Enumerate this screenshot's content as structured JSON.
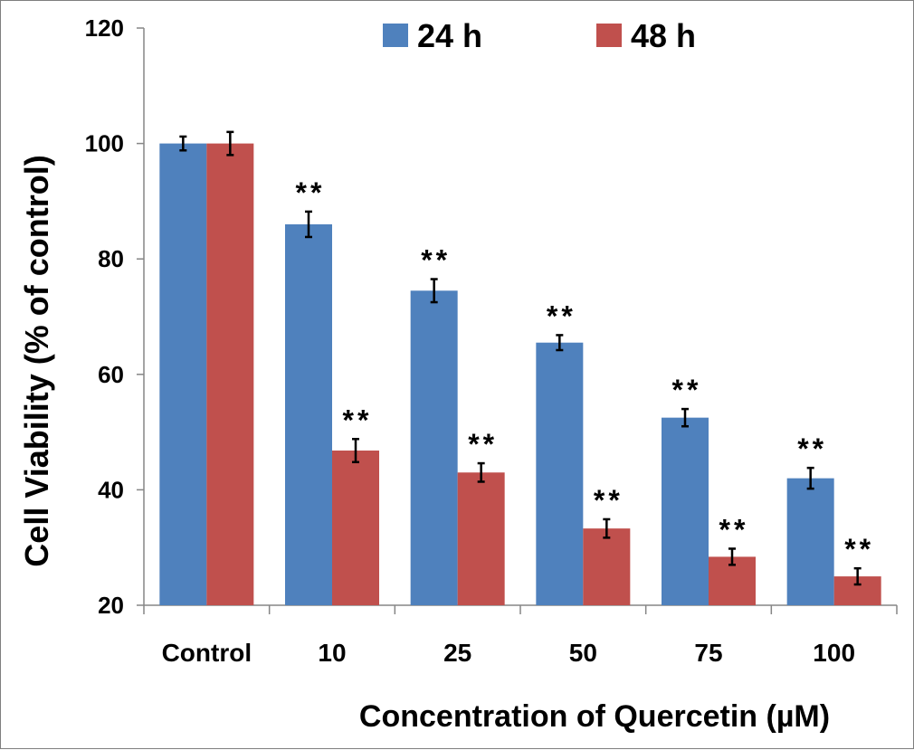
{
  "chart_data": {
    "type": "bar",
    "title": "",
    "xlabel": "Concentration of Quercetin (µM)",
    "ylabel": "Cell Viability (% of control)",
    "ylim": [
      20,
      120
    ],
    "yticks": [
      20,
      40,
      60,
      80,
      100,
      120
    ],
    "grid": false,
    "legend_position": "top",
    "categories": [
      "Control",
      "10",
      "25",
      "50",
      "75",
      "100"
    ],
    "series": [
      {
        "name": "24 h",
        "color": "#4f81bd",
        "values": [
          100,
          86,
          74.5,
          65.5,
          52.5,
          42
        ],
        "errors": [
          1.2,
          2.2,
          2,
          1.3,
          1.5,
          1.8
        ],
        "significance": [
          "",
          "**",
          "**",
          "**",
          "**",
          "**"
        ]
      },
      {
        "name": "48 h",
        "color": "#c0504d",
        "values": [
          100,
          46.8,
          43,
          33.3,
          28.4,
          25
        ],
        "errors": [
          2,
          2,
          1.6,
          1.6,
          1.4,
          1.4
        ],
        "significance": [
          "",
          "**",
          "**",
          "**",
          "**",
          "**"
        ]
      }
    ]
  }
}
